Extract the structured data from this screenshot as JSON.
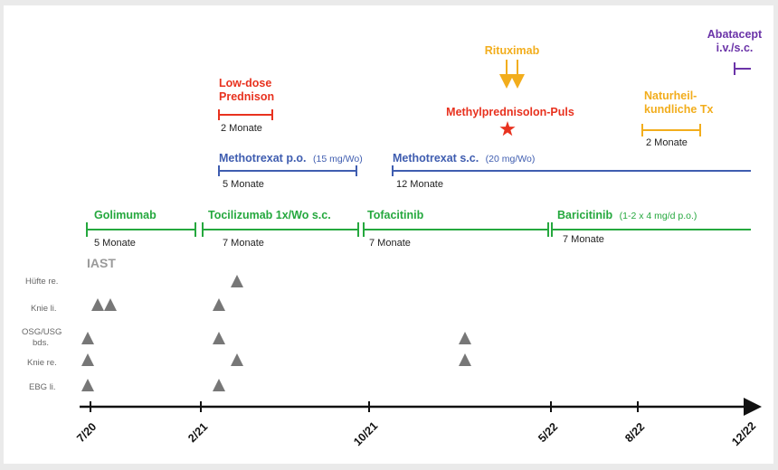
{
  "colors": {
    "red": "#e8321f",
    "blue": "#3f5db0",
    "green": "#25a83e",
    "orange": "#f2ad1c",
    "purple": "#6b34a8",
    "triangle": "#777777",
    "axis": "#111111"
  },
  "labels": {
    "rituximab": "Rituximab",
    "abatacept_l1": "Abatacept",
    "abatacept_l2": "i.v./s.c.",
    "prednison_l1": "Low-dose",
    "prednison_l2": "Prednison",
    "prednison_dur": "2 Monate",
    "methylpred": "Methylprednisolon-Puls",
    "naturheil_l1": "Naturheil-",
    "naturheil_l2": "kundliche Tx",
    "naturheil_dur": "2 Monate",
    "mtx_po_name": "Methotrexat p.o.",
    "mtx_po_dose": "(15 mg/Wo)",
    "mtx_po_dur": "5 Monate",
    "mtx_sc_name": "Methotrexat s.c.",
    "mtx_sc_dose": "(20 mg/Wo)",
    "mtx_sc_dur": "12 Monate",
    "golimumab": "Golimumab",
    "golimumab_dur": "5 Monate",
    "tocilizumab": "Tocilizumab 1x/Wo s.c.",
    "tocilizumab_dur": "7 Monate",
    "tofacitinib": "Tofacitinib",
    "tofacitinib_dur": "7 Monate",
    "baricitinib_name": "Baricitinib",
    "baricitinib_dose": "(1-2 x 4 mg/d p.o.)",
    "baricitinib_dur": "7 Monate",
    "iast": "IAST"
  },
  "joints": {
    "huefte": "Hüfte re.",
    "knie_li": "Knie li.",
    "osg_l1": "OSG/USG",
    "osg_l2": "bds.",
    "knie_re": "Knie re.",
    "ebg": "EBG li."
  },
  "axis_ticks": [
    "7/20",
    "2/21",
    "10/21",
    "5/22",
    "8/22",
    "12/22"
  ]
}
